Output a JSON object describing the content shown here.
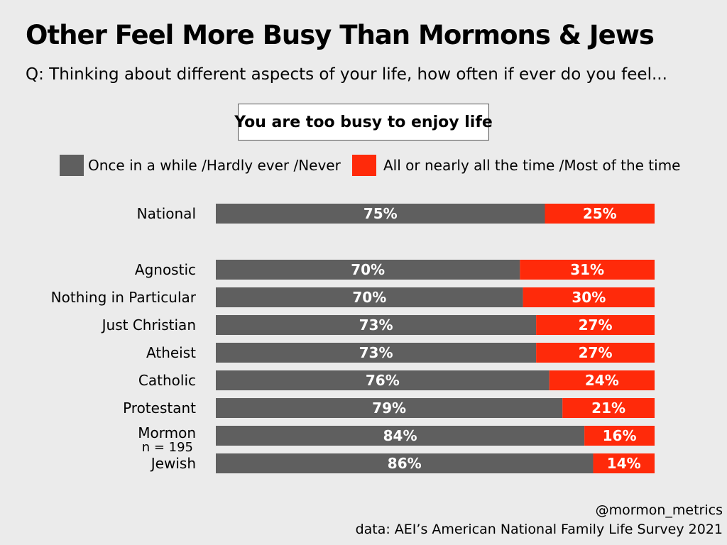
{
  "colors": {
    "grey": "#5f5f5f",
    "red": "#ff2a0a",
    "background": "#ebebeb"
  },
  "header": {
    "title": "Other Feel More Busy Than Mormons & Jews",
    "subtitle": "Q: Thinking about different aspects of your life, how often if ever do you feel..."
  },
  "question_box": "You are too busy to enjoy life",
  "footer": {
    "handle": "@mormon_metrics",
    "source": "data: AEI’s American National Family Life Survey 2021"
  },
  "chart_data": {
    "type": "bar",
    "orientation": "horizontal",
    "stacked": true,
    "title": "You are too busy to enjoy life",
    "categories": [
      "National",
      "Agnostic",
      "Nothing in Particular",
      "Just Christian",
      "Atheist",
      "Catholic",
      "Protestant",
      "Mormon",
      "Jewish"
    ],
    "category_notes": [
      "",
      "",
      "",
      "",
      "",
      "",
      "",
      "n = 195",
      ""
    ],
    "series": [
      {
        "name": "Once in a while /Hardly ever /Never",
        "color": "#5f5f5f",
        "values": [
          75,
          70,
          70,
          73,
          73,
          76,
          79,
          84,
          86
        ]
      },
      {
        "name": "All or nearly all the time /Most of the time",
        "color": "#ff2a0a",
        "values": [
          25,
          31,
          30,
          27,
          27,
          24,
          21,
          16,
          14
        ]
      }
    ],
    "value_suffix": "%",
    "legend": "top",
    "xlim": [
      0,
      100
    ]
  }
}
